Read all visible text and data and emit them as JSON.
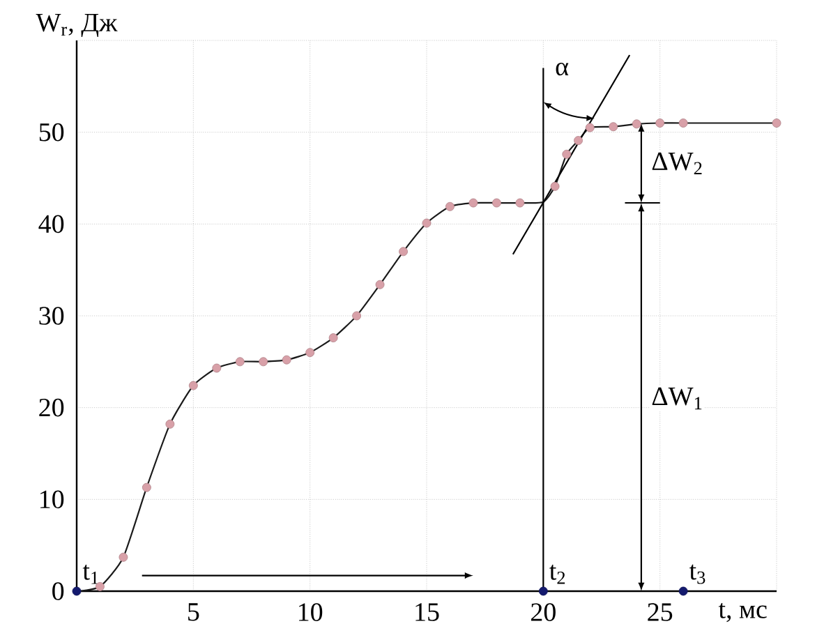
{
  "chart_data": {
    "type": "line",
    "xlabel": "t, мс",
    "ylabel": "W$_{r}$, Дж",
    "xlim": [
      0,
      30
    ],
    "ylim": [
      0,
      60
    ],
    "xticks": [
      5,
      10,
      15,
      20,
      25,
      {
        "value": 30,
        "label": null
      }
    ],
    "yticks": [
      0,
      10,
      20,
      30,
      40,
      50,
      {
        "value": 60,
        "label": null
      }
    ],
    "grid": true,
    "series": [
      {
        "color": "#1a1a1a",
        "marker": "none",
        "x": [
          0,
          1,
          2,
          3,
          4,
          5,
          6,
          7,
          8,
          9,
          10,
          11,
          12,
          13,
          14,
          15,
          16,
          17,
          18,
          19,
          20,
          20.5,
          21,
          21.5,
          22,
          23,
          24,
          25,
          26,
          30
        ],
        "values": [
          0,
          0.5,
          3.7,
          11.3,
          18.2,
          22.4,
          24.3,
          25.0,
          25.0,
          25.2,
          26.0,
          27.6,
          30.0,
          33.4,
          37.0,
          40.1,
          41.9,
          42.3,
          42.3,
          42.3,
          42.4,
          44.1,
          47.6,
          49.1,
          50.5,
          50.6,
          50.9,
          51.0,
          51.0,
          51.0
        ]
      },
      {
        "type": "scatter",
        "color": "#d8a0a8",
        "marker": "circle",
        "x": [
          1,
          2,
          3,
          4,
          5,
          6,
          7,
          8,
          9,
          10,
          11,
          12,
          13,
          14,
          15,
          16,
          17,
          18,
          19,
          20.5,
          21,
          21.5,
          22,
          23,
          24,
          25,
          26,
          30
        ],
        "values": [
          0.5,
          3.7,
          11.3,
          18.2,
          22.4,
          24.3,
          25.0,
          25.0,
          25.2,
          26.0,
          27.6,
          30.0,
          33.4,
          37.0,
          40.1,
          41.9,
          42.3,
          42.3,
          42.3,
          44.1,
          47.6,
          49.1,
          50.5,
          50.6,
          50.9,
          51.0,
          51.0,
          51.0
        ]
      },
      {
        "type": "scatter",
        "color": "#141a6e",
        "marker": "circle",
        "x": [
          0,
          20,
          26
        ],
        "values": [
          0,
          0,
          0
        ]
      },
      {
        "color": "#000000",
        "marker": "none",
        "x": [
          18.7,
          23.7
        ],
        "values": [
          36.7,
          58.4
        ]
      }
    ],
    "ref_lines": [
      {
        "axis": "x",
        "value": 20,
        "color": "#000000"
      }
    ],
    "annotations": [
      {
        "text": "t$_{1}$",
        "x": 0,
        "y": 0
      },
      {
        "text": "t$_{2}$",
        "x": 20,
        "y": 0
      },
      {
        "text": "t$_{3}$",
        "x": 26,
        "y": 0
      },
      "α",
      "ΔW$_{2}$",
      "ΔW$_{1}$"
    ]
  }
}
